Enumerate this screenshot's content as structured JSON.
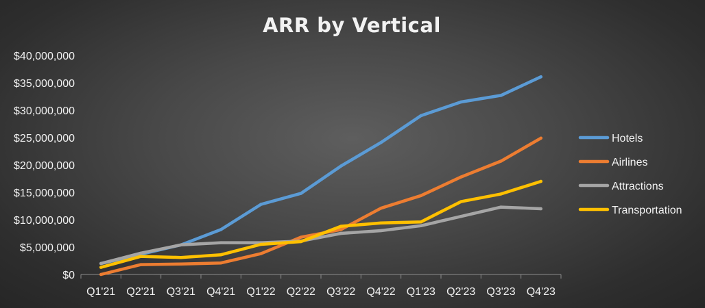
{
  "chart_data": {
    "type": "line",
    "title": "ARR by Vertical",
    "xlabel": "",
    "ylabel": "",
    "categories": [
      "Q1'21",
      "Q2'21",
      "Q3'21",
      "Q4'21",
      "Q1'22",
      "Q2'22",
      "Q3'22",
      "Q4'22",
      "Q1'23",
      "Q2'23",
      "Q3'23",
      "Q4'23"
    ],
    "ylim": [
      0,
      40000000
    ],
    "y_ticks": [
      {
        "value": 0,
        "label": "$0"
      },
      {
        "value": 5000000,
        "label": "$5,000,000"
      },
      {
        "value": 10000000,
        "label": "$10,000,000"
      },
      {
        "value": 15000000,
        "label": "$15,000,000"
      },
      {
        "value": 20000000,
        "label": "$20,000,000"
      },
      {
        "value": 25000000,
        "label": "$25,000,000"
      },
      {
        "value": 30000000,
        "label": "$30,000,000"
      },
      {
        "value": 35000000,
        "label": "$35,000,000"
      },
      {
        "value": 40000000,
        "label": "$40,000,000"
      }
    ],
    "grid": false,
    "legend_position": "right",
    "series": [
      {
        "name": "Hotels",
        "color": "#5b9bd5",
        "values": [
          2000000,
          3700000,
          5400000,
          8200000,
          12800000,
          14800000,
          19800000,
          24100000,
          29000000,
          31500000,
          32700000,
          36100000
        ]
      },
      {
        "name": "Airlines",
        "color": "#ed7d31",
        "values": [
          0,
          1800000,
          1900000,
          2100000,
          3800000,
          6800000,
          8200000,
          12100000,
          14400000,
          17800000,
          20700000,
          24900000
        ]
      },
      {
        "name": "Attractions",
        "color": "#a5a5a5",
        "values": [
          2000000,
          3900000,
          5400000,
          5800000,
          5800000,
          6100000,
          7500000,
          8000000,
          8900000,
          10600000,
          12300000,
          12000000
        ]
      },
      {
        "name": "Transportation",
        "color": "#ffc000",
        "values": [
          1300000,
          3300000,
          3100000,
          3600000,
          5500000,
          6000000,
          8800000,
          9400000,
          9600000,
          13300000,
          14700000,
          17000000
        ]
      }
    ]
  }
}
